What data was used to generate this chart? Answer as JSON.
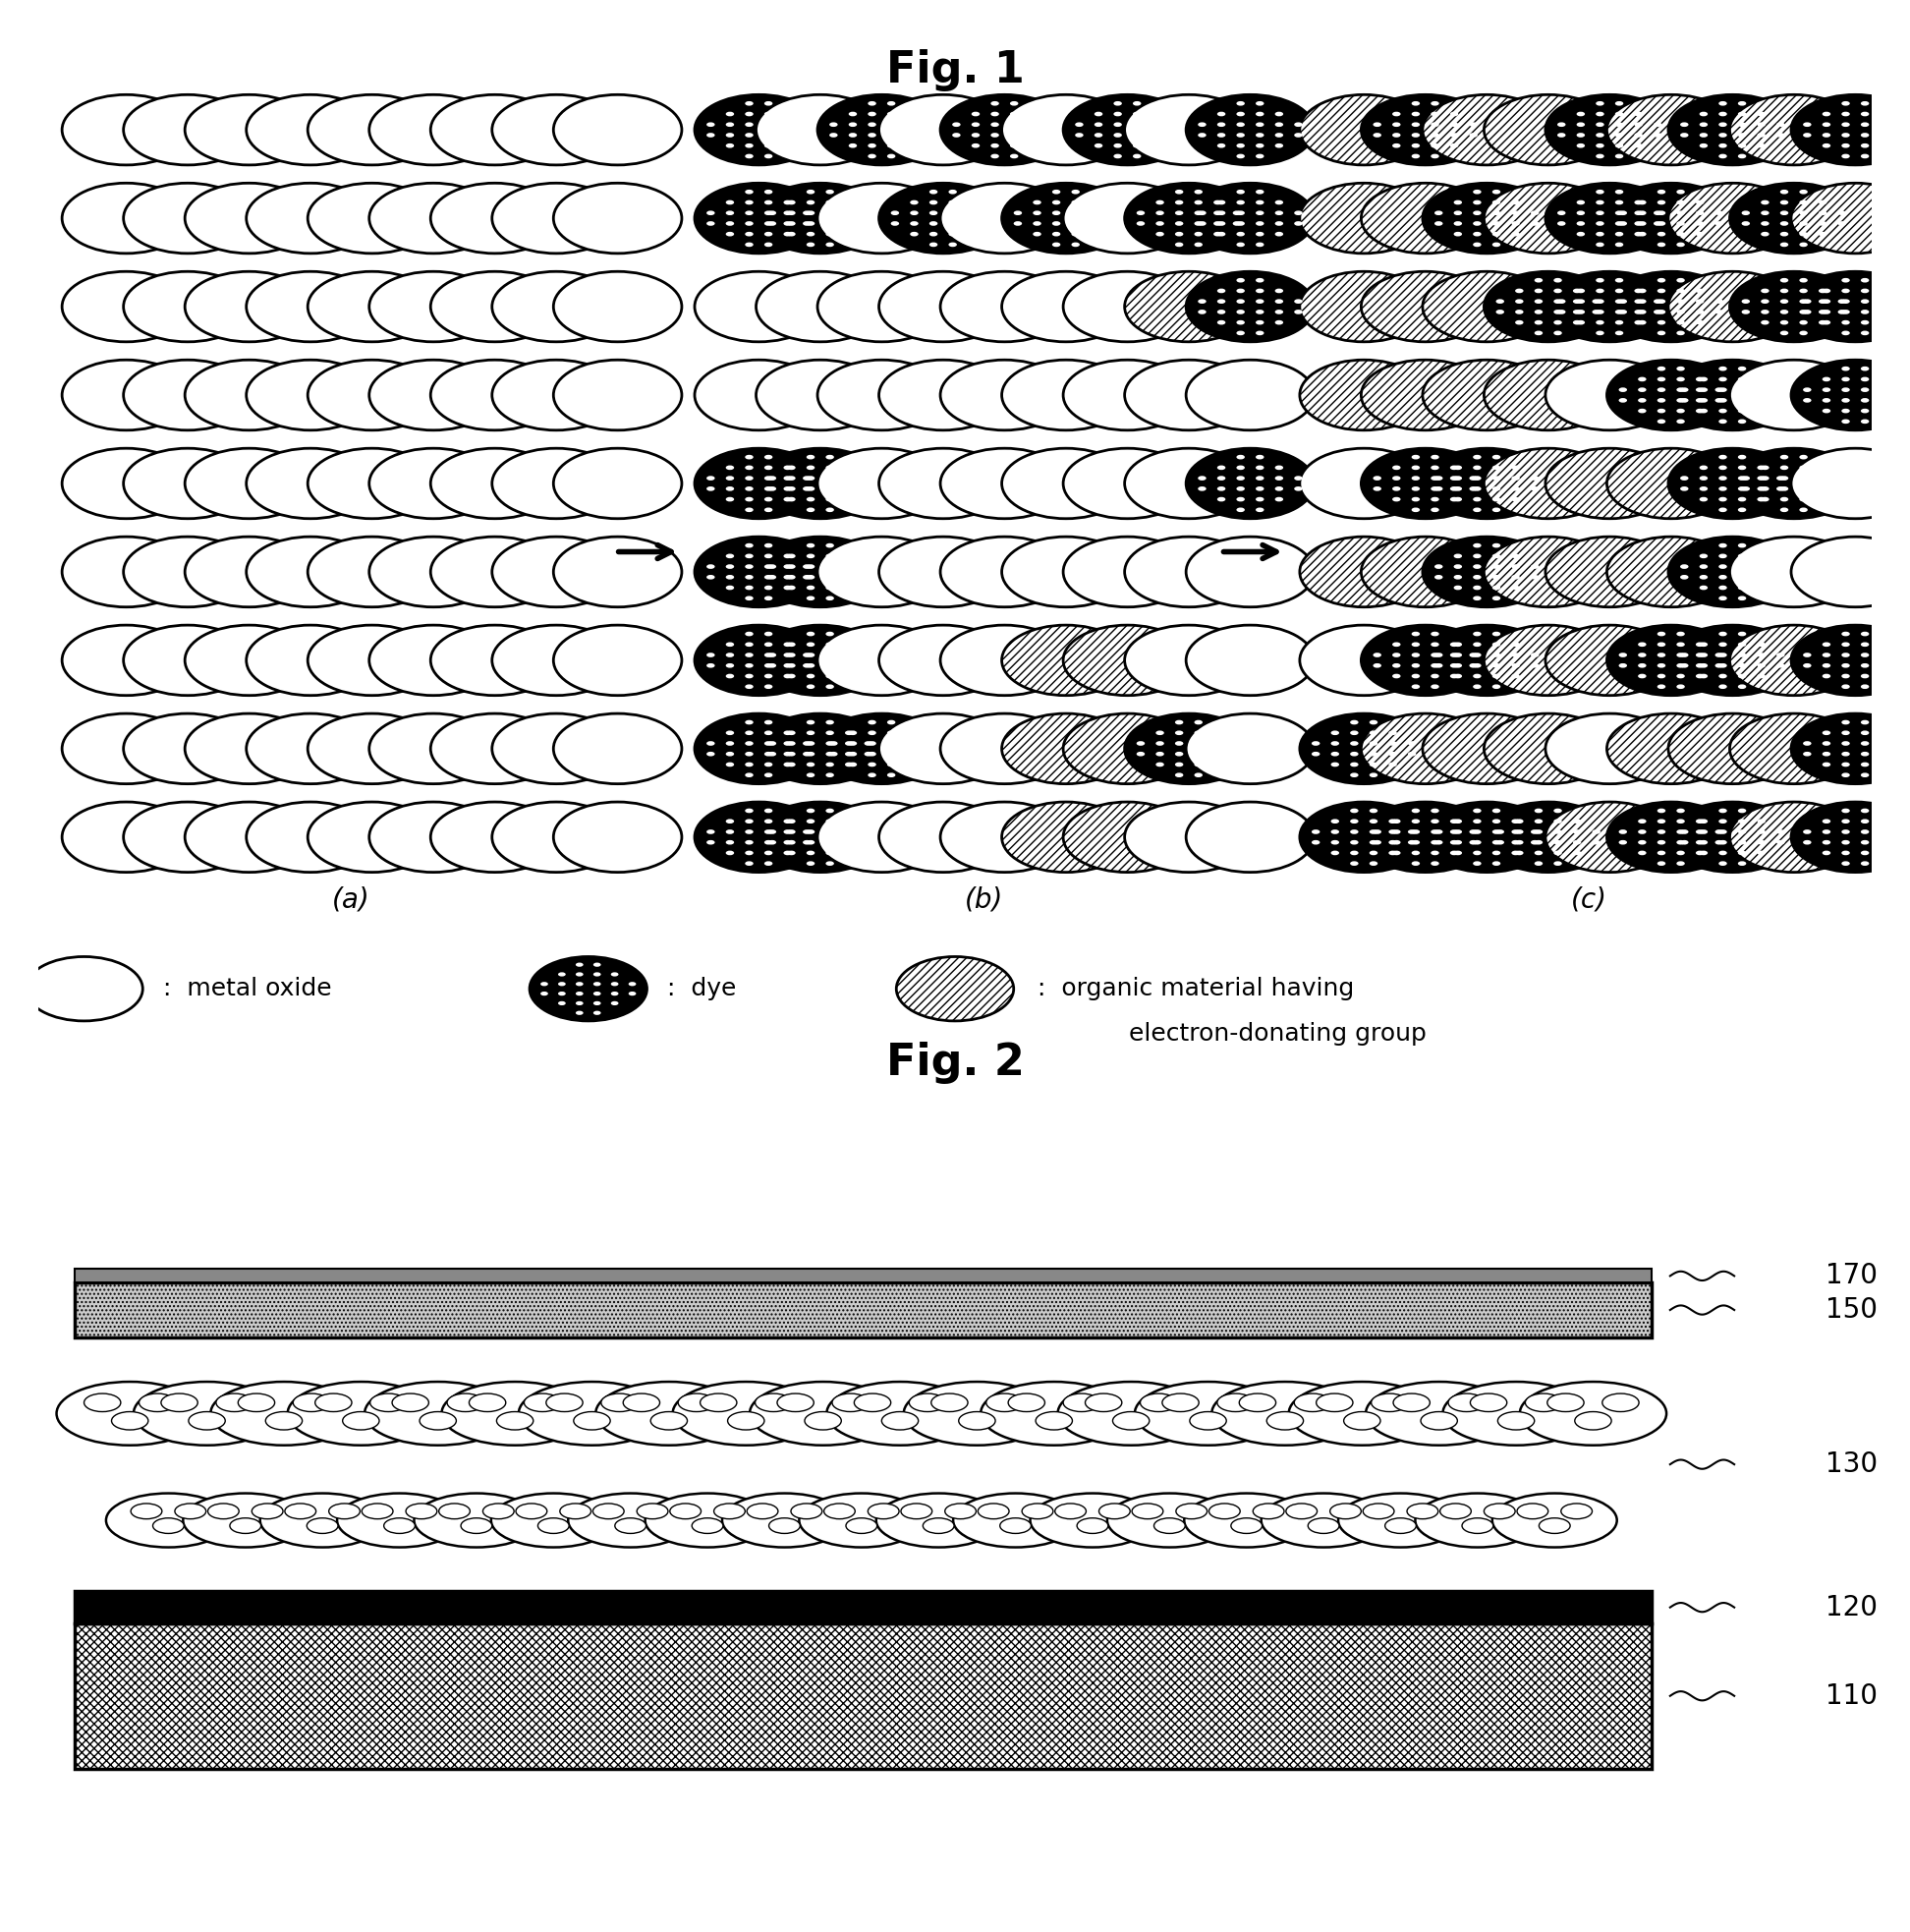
{
  "fig1_title": "Fig. 1",
  "fig2_title": "Fig. 2",
  "title_fontsize": 32,
  "label_fontsize": 20,
  "legend_fontsize": 18,
  "grid_a_label": "(a)",
  "grid_b_label": "(b)",
  "grid_c_label": "(c)",
  "legend_metal_oxide": ":  metal oxide",
  "legend_dye": ":  dye",
  "legend_organic_line1": "organic material having",
  "legend_organic_line2": "electron-donating group",
  "layer_labels": [
    "170",
    "150",
    "130",
    "120",
    "110"
  ],
  "background_color": "#ffffff",
  "fig1_cols": 9,
  "fig1_rows": 9,
  "panel_b_pattern": [
    [
      1,
      0,
      1,
      0,
      1,
      0,
      1,
      0,
      1
    ],
    [
      1,
      1,
      0,
      1,
      0,
      1,
      0,
      1,
      1
    ],
    [
      0,
      0,
      0,
      0,
      0,
      0,
      0,
      2,
      1
    ],
    [
      0,
      0,
      0,
      0,
      0,
      0,
      0,
      0,
      0
    ],
    [
      1,
      1,
      0,
      0,
      0,
      0,
      0,
      0,
      1
    ],
    [
      1,
      1,
      0,
      0,
      0,
      0,
      0,
      0,
      0
    ],
    [
      1,
      1,
      0,
      0,
      0,
      2,
      2,
      0,
      0
    ],
    [
      1,
      1,
      1,
      0,
      0,
      2,
      2,
      1,
      0
    ],
    [
      1,
      1,
      0,
      0,
      0,
      2,
      2,
      0,
      0
    ]
  ],
  "panel_c_pattern": [
    [
      2,
      1,
      2,
      2,
      1,
      2,
      1,
      2,
      1
    ],
    [
      2,
      2,
      1,
      2,
      1,
      1,
      2,
      1,
      2
    ],
    [
      2,
      2,
      2,
      1,
      1,
      1,
      2,
      1,
      1
    ],
    [
      2,
      2,
      2,
      2,
      0,
      1,
      1,
      0,
      1
    ],
    [
      0,
      1,
      1,
      2,
      2,
      2,
      1,
      1,
      0
    ],
    [
      2,
      2,
      1,
      2,
      2,
      2,
      1,
      0,
      0
    ],
    [
      0,
      1,
      1,
      2,
      2,
      1,
      1,
      2,
      1
    ],
    [
      1,
      2,
      2,
      2,
      0,
      2,
      2,
      2,
      1
    ],
    [
      1,
      1,
      1,
      1,
      2,
      1,
      1,
      2,
      1
    ]
  ]
}
